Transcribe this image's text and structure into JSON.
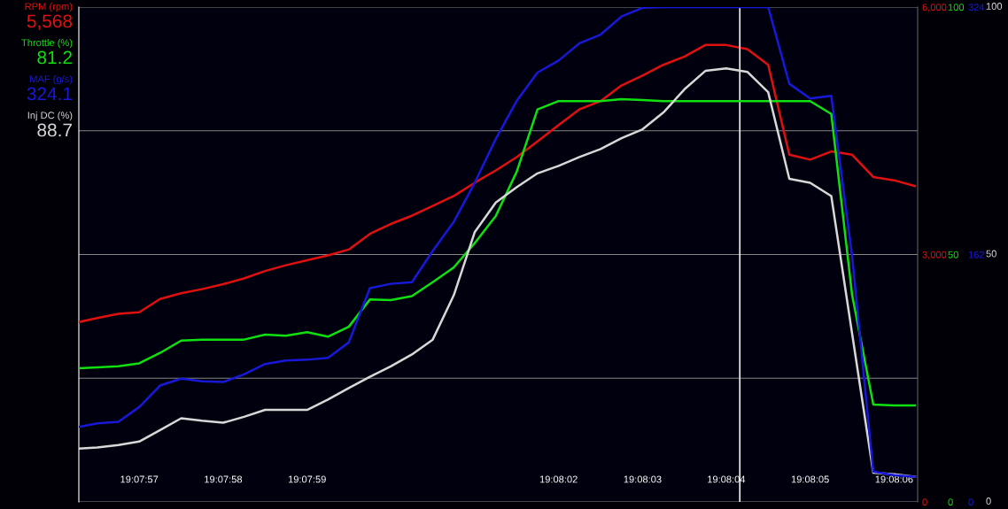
{
  "chart_data": {
    "type": "line",
    "x": [
      19.1323,
      19.132361,
      19.132431,
      19.1325,
      19.132569,
      19.132639,
      19.132708,
      19.132778,
      19.132847,
      19.132917,
      19.132986,
      19.133056,
      19.133125,
      19.133194,
      19.133264,
      19.133333,
      19.133403,
      19.133472,
      19.133542,
      19.133611,
      19.133681,
      19.13375,
      19.133819,
      19.133889,
      19.133958,
      19.134028,
      19.134097,
      19.134167,
      19.134236,
      19.134306,
      19.134375,
      19.134444,
      19.134514,
      19.134583,
      19.134653,
      19.134722,
      19.134792,
      19.134861,
      19.134931,
      19.135,
      19.135069
    ],
    "series": [
      {
        "name": "RPM (rpm)",
        "color": "#e01010",
        "axis": "y",
        "values": [
          2180,
          2230,
          2280,
          2300,
          2460,
          2530,
          2580,
          2640,
          2710,
          2800,
          2870,
          2930,
          2990,
          3060,
          3250,
          3370,
          3470,
          3590,
          3710,
          3870,
          4020,
          4180,
          4370,
          4570,
          4760,
          4860,
          5050,
          5170,
          5300,
          5400,
          5540,
          5540,
          5490,
          5300,
          4210,
          4150,
          4250,
          4210,
          3940,
          3900,
          3830
        ]
      },
      {
        "name": "Throttle (%)",
        "color": "#10e010",
        "axis": "y2",
        "values": [
          27.0,
          27.2,
          27.4,
          28.0,
          30.1,
          32.6,
          32.8,
          32.8,
          32.8,
          33.8,
          33.6,
          34.3,
          33.4,
          35.4,
          40.9,
          40.8,
          41.6,
          44.4,
          47.4,
          52.3,
          57.8,
          66.7,
          79.3,
          81.0,
          81.0,
          81.0,
          81.4,
          81.2,
          81.0,
          81.0,
          81.0,
          81.0,
          81.0,
          81.0,
          81.0,
          81.0,
          78.4,
          41.8,
          19.7,
          19.5,
          19.5
        ]
      },
      {
        "name": "MAF (g/s)",
        "color": "#1818d8",
        "axis": "y3",
        "values": [
          49.1,
          51.4,
          52.5,
          62.1,
          76.2,
          80.7,
          79.0,
          78.5,
          83.5,
          90.3,
          92.6,
          93.1,
          94.3,
          104.4,
          140.0,
          142.8,
          143.9,
          164.3,
          183.5,
          208.9,
          237.7,
          262.5,
          281.1,
          289.0,
          300.3,
          306.0,
          317.8,
          323.5,
          324,
          324,
          324,
          324,
          324,
          324,
          273.8,
          264.2,
          265.9,
          160.9,
          19.8,
          17.5,
          16.4
        ]
      },
      {
        "name": "Inj DC (%)",
        "color": "#d8d8d8",
        "axis": "y2",
        "values": [
          10.8,
          11.0,
          11.5,
          12.2,
          14.5,
          16.9,
          16.4,
          16.0,
          17.2,
          18.6,
          18.6,
          18.6,
          20.7,
          23.0,
          25.3,
          27.4,
          29.8,
          32.8,
          41.8,
          54.5,
          60.5,
          63.6,
          66.4,
          67.9,
          69.7,
          71.3,
          73.5,
          75.3,
          78.7,
          83.4,
          87.1,
          87.6,
          86.9,
          82.8,
          65.3,
          64.5,
          61.8,
          34.0,
          5.9,
          5.6,
          5.1
        ]
      }
    ],
    "annotations": [
      "5,568",
      "81.2",
      "324.1",
      "88.7",
      "0",
      "50",
      "100"
    ],
    "xlim": [
      19.1323,
      19.135078
    ],
    "xticks": [
      {
        "value": 19.1325,
        "label": "19:07:57"
      },
      {
        "value": 19.132778,
        "label": "19:07:58"
      },
      {
        "value": 19.133056,
        "label": "19:07:59"
      },
      {
        "value": 19.133889,
        "label": "19:08:02"
      },
      {
        "value": 19.134167,
        "label": "19:08:03"
      },
      {
        "value": 19.134444,
        "label": "19:08:04"
      },
      {
        "value": 19.134722,
        "label": "19:08:05"
      },
      {
        "value": 19.135,
        "label": "19:08:06"
      }
    ],
    "ylim": [
      0,
      6000
    ],
    "yticks": [
      0,
      {
        "value": 1500,
        "label": null
      },
      {
        "value": 3000,
        "label": "3,000"
      },
      {
        "value": 4500,
        "label": null
      },
      {
        "value": 6000,
        "label": "6,000"
      }
    ],
    "y2lim": [
      0,
      100
    ],
    "y2ticks": [
      0,
      50,
      100
    ],
    "y3lim": [
      0,
      324
    ],
    "y3ticks": [
      0,
      162,
      324
    ],
    "ref_lines": [
      {
        "axis": "x",
        "value": 19.134489,
        "color": "#ffffff"
      }
    ],
    "grid": "y",
    "legend": "left"
  }
}
